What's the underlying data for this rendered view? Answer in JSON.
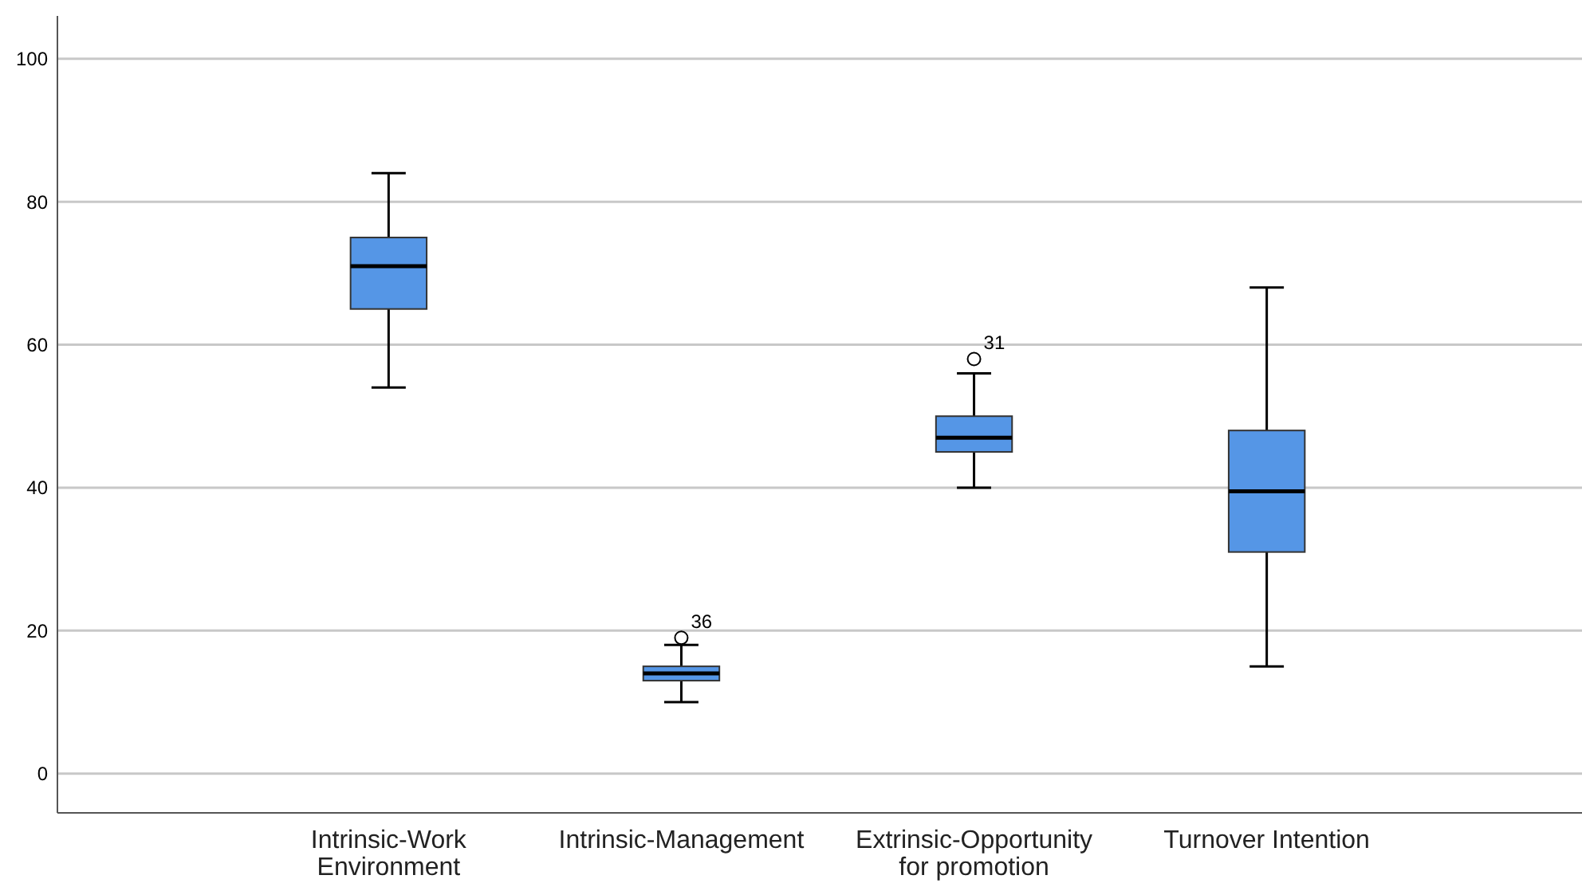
{
  "chart_data": {
    "type": "box",
    "categories": [
      "Intrinsic-Work Environment",
      "Intrinsic-Management",
      "Extrinsic-Opportunity for promotion",
      "Turnover Intention"
    ],
    "boxes": [
      {
        "low": 54,
        "q1": 65,
        "median": 71,
        "q3": 75,
        "high": 84
      },
      {
        "low": 10,
        "q1": 13,
        "median": 14,
        "q3": 15,
        "high": 18,
        "outliers": [
          19
        ]
      },
      {
        "low": 40,
        "q1": 45,
        "median": 47,
        "q3": 50,
        "high": 56,
        "outliers": [
          58
        ]
      },
      {
        "low": 15,
        "q1": 31,
        "median": 39.5,
        "q3": 48,
        "high": 68
      }
    ],
    "color": "#5596e6",
    "ylim": [
      -5.5,
      106
    ],
    "yticks": [
      0,
      20,
      40,
      60,
      80,
      100
    ],
    "grid": "y",
    "annotations": [
      "36",
      "31"
    ]
  }
}
